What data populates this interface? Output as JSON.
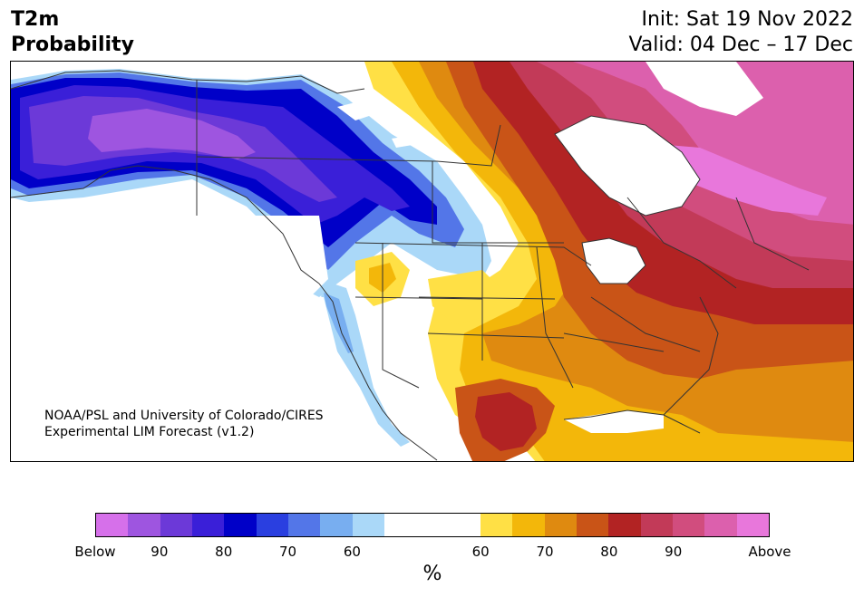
{
  "header": {
    "title_line1": "T2m",
    "title_line2": "Probability",
    "init_text": "Init: Sat 19 Nov 2022",
    "valid_text": "Valid: 04 Dec – 17 Dec"
  },
  "map": {
    "credit_line1": "NOAA/PSL and University of Colorado/CIRES",
    "credit_line2": "Experimental LIM Forecast (v1.2)",
    "region": "North America"
  },
  "legend": {
    "unit_label": "%",
    "ticks": [
      "Below",
      "90",
      "80",
      "70",
      "60",
      "60",
      "70",
      "80",
      "90",
      "Above"
    ],
    "colors": {
      "below_bins": [
        "#d670ea",
        "#9e55e0",
        "#6c39d8",
        "#3a1fd8",
        "#0000c8",
        "#2a3fe0",
        "#5376e8",
        "#78aef0",
        "#aad8f8"
      ],
      "neutral": "#ffffff",
      "above_bins": [
        "#ffe045",
        "#f3b70a",
        "#df8a10",
        "#c95417",
        "#b22323",
        "#c23a58",
        "#d14d7e",
        "#dc60ad",
        "#e877db"
      ]
    }
  }
}
